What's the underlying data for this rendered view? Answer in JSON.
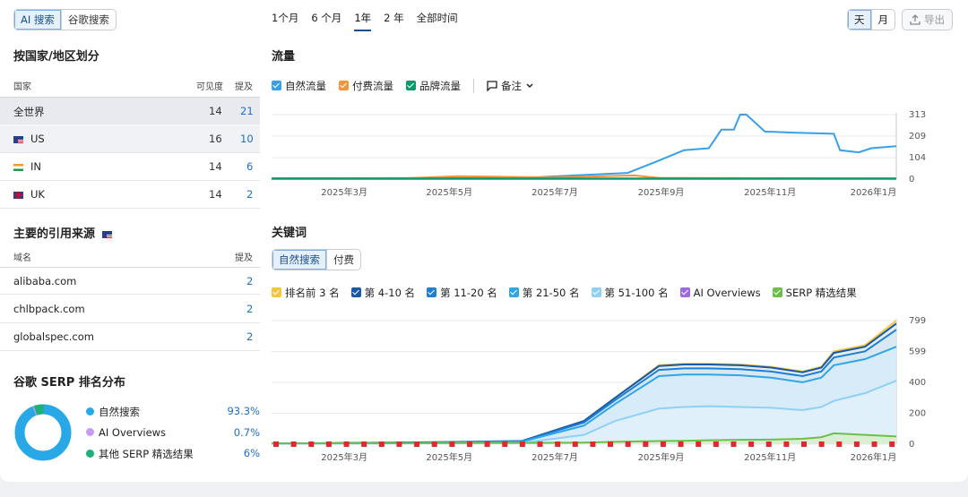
{
  "top_tabs": [
    "AI 搜索",
    "谷歌搜索"
  ],
  "ranges": [
    "1个月",
    "6 个月",
    "1年",
    "2 年",
    "全部时间"
  ],
  "granularity": [
    "天",
    "月"
  ],
  "export_label": "导出",
  "country": {
    "title": "按国家/地区划分",
    "headers": {
      "country": "国家",
      "visibility": "可见度",
      "mentions": "提及"
    },
    "rows": [
      {
        "name": "全世界",
        "visibility": "14",
        "mentions": "21"
      },
      {
        "name": "US",
        "visibility": "16",
        "mentions": "10"
      },
      {
        "name": "IN",
        "visibility": "14",
        "mentions": "6"
      },
      {
        "name": "UK",
        "visibility": "14",
        "mentions": "2"
      }
    ]
  },
  "sources": {
    "title": "主要的引用来源",
    "headers": {
      "domain": "域名",
      "mentions": "提及"
    },
    "rows": [
      {
        "domain": "alibaba.com",
        "mentions": "2"
      },
      {
        "domain": "chlbpack.com",
        "mentions": "2"
      },
      {
        "domain": "globalspec.com",
        "mentions": "2"
      }
    ]
  },
  "serp": {
    "title": "谷歌 SERP 排名分布",
    "items": [
      {
        "label": "自然搜索",
        "value": "93.3%",
        "color": "#29a8e8"
      },
      {
        "label": "AI Overviews",
        "value": "0.7%",
        "color": "#c49cf0"
      },
      {
        "label": "其他 SERP 精选结果",
        "value": "6%",
        "color": "#1fb07a"
      }
    ]
  },
  "traffic": {
    "title": "流量",
    "legend": [
      {
        "label": "自然流量",
        "color": "#3aa0e6"
      },
      {
        "label": "付费流量",
        "color": "#f0963c"
      },
      {
        "label": "品牌流量",
        "color": "#0f9a6e"
      }
    ],
    "notes_label": "备注"
  },
  "keywords": {
    "title": "关键词",
    "tabs": [
      "自然搜索",
      "付费"
    ],
    "legend": [
      {
        "label": "排名前 3 名",
        "color": "#f5c542"
      },
      {
        "label": "第 4-10 名",
        "color": "#1559a8"
      },
      {
        "label": "第 11-20 名",
        "color": "#1d7fd6"
      },
      {
        "label": "第 21-50 名",
        "color": "#2fa6ea"
      },
      {
        "label": "第 51-100 名",
        "color": "#8fd0f5"
      },
      {
        "label": "AI Overviews",
        "color": "#9f6ae0"
      },
      {
        "label": "SERP 精选结果",
        "color": "#6cc04a"
      }
    ]
  },
  "chart_data": [
    {
      "type": "line",
      "title": "流量",
      "x_ticks": [
        "2025年3月",
        "2025年5月",
        "2025年7月",
        "2025年9月",
        "2025年11月",
        "2026年1月"
      ],
      "y_ticks": [
        0,
        104,
        209,
        313
      ],
      "ylim": [
        0,
        313
      ],
      "series": [
        {
          "name": "自然流量",
          "x": [
            0,
            0.38,
            0.43,
            0.57,
            0.62,
            0.66,
            0.7,
            0.72,
            0.74,
            0.75,
            0.76,
            0.79,
            0.8,
            0.84,
            0.9,
            0.91,
            0.94,
            0.96,
            1
          ],
          "y": [
            4,
            6,
            10,
            30,
            90,
            140,
            150,
            240,
            240,
            313,
            313,
            230,
            230,
            225,
            220,
            140,
            130,
            150,
            160
          ]
        },
        {
          "name": "付费流量",
          "x": [
            0,
            0.22,
            0.3,
            0.45,
            0.58,
            0.62,
            1
          ],
          "y": [
            3,
            5,
            14,
            8,
            18,
            6,
            3
          ]
        },
        {
          "name": "品牌流量",
          "x": [
            0,
            1
          ],
          "y": [
            2,
            2
          ]
        }
      ]
    },
    {
      "type": "area",
      "title": "关键词",
      "x_ticks": [
        "2025年3月",
        "2025年5月",
        "2025年7月",
        "2025年9月",
        "2025年11月",
        "2026年1月"
      ],
      "y_ticks": [
        0,
        200,
        400,
        599,
        799
      ],
      "ylim": [
        0,
        799
      ],
      "x": [
        0,
        0.2,
        0.4,
        0.5,
        0.55,
        0.62,
        0.66,
        0.7,
        0.75,
        0.8,
        0.85,
        0.88,
        0.9,
        0.95,
        1
      ],
      "series": [
        {
          "name": "排名前 3 名",
          "values": [
            4,
            10,
            20,
            150,
            300,
            510,
            520,
            520,
            515,
            500,
            470,
            500,
            600,
            640,
            799
          ]
        },
        {
          "name": "第 4-10 名",
          "values": [
            4,
            10,
            20,
            150,
            300,
            505,
            515,
            515,
            510,
            495,
            465,
            495,
            590,
            630,
            780
          ]
        },
        {
          "name": "第 11-20 名",
          "values": [
            3,
            9,
            18,
            140,
            285,
            480,
            490,
            490,
            485,
            470,
            440,
            470,
            560,
            600,
            740
          ]
        },
        {
          "name": "第 21-50 名",
          "values": [
            3,
            8,
            15,
            120,
            260,
            440,
            450,
            450,
            445,
            430,
            400,
            430,
            510,
            550,
            630
          ]
        },
        {
          "name": "第 51-100 名",
          "values": [
            2,
            5,
            8,
            60,
            150,
            230,
            240,
            245,
            240,
            235,
            220,
            240,
            280,
            330,
            410
          ]
        },
        {
          "name": "SERP 精选结果",
          "values": [
            5,
            6,
            8,
            10,
            15,
            20,
            22,
            25,
            28,
            30,
            35,
            45,
            70,
            60,
            50
          ]
        }
      ]
    }
  ]
}
